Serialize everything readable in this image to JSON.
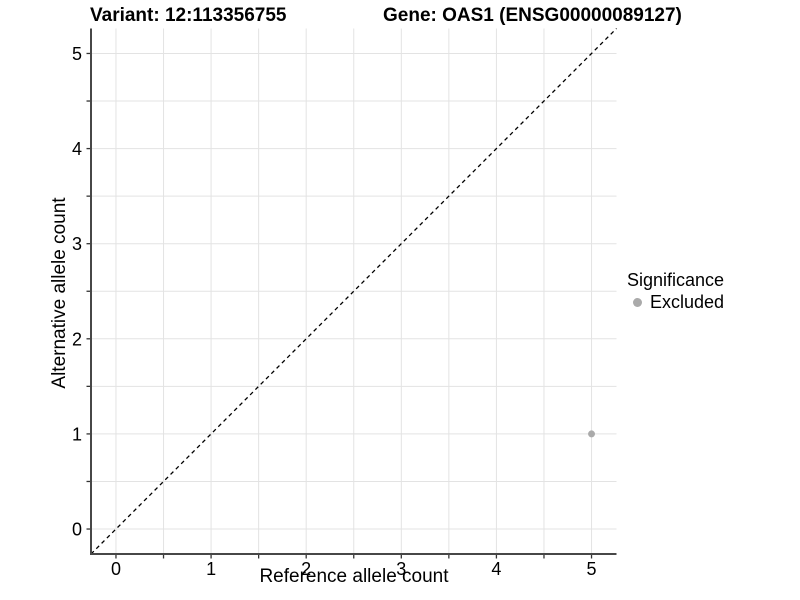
{
  "chart_data": {
    "type": "scatter",
    "titles": {
      "variant": "Variant: 12:113356755",
      "gene": "Gene: OAS1 (ENSG00000089127)"
    },
    "xlabel": "Reference allele count",
    "ylabel": "Alternative allele count",
    "xlim": [
      -0.2625,
      5.2625
    ],
    "ylim": [
      -0.2625,
      5.2625
    ],
    "x_tick_labels": [
      0,
      1,
      2,
      3,
      4,
      5
    ],
    "y_tick_labels": [
      0,
      1,
      2,
      3,
      4,
      5
    ],
    "minor_tick_step": 0.5,
    "grid": true,
    "identity_line": {
      "style": "dashed",
      "color": "#000000",
      "from": [
        -0.2625,
        -0.2625
      ],
      "to": [
        5.2625,
        5.2625
      ]
    },
    "series": [
      {
        "name": "Excluded",
        "color": "#aaaaaa",
        "point_radius": 3.5,
        "points": [
          {
            "x": 5,
            "y": 1
          }
        ]
      }
    ],
    "legend": {
      "title": "Significance",
      "position": "right",
      "items": [
        {
          "label": "Excluded",
          "color": "#aaaaaa"
        }
      ]
    },
    "colors": {
      "grid": "#e3e3e3",
      "axis_line": "#474747",
      "tick": "#343434",
      "background": "#ffffff"
    }
  }
}
